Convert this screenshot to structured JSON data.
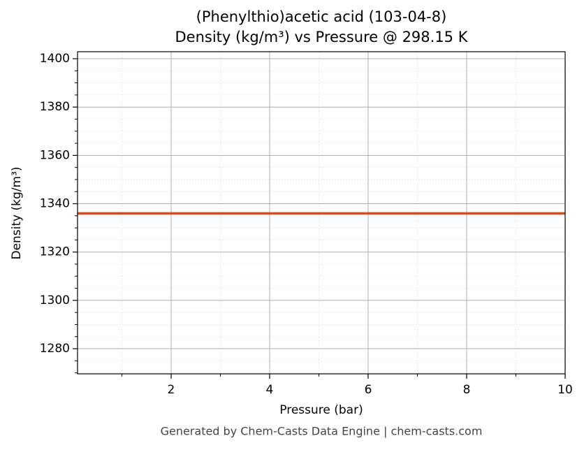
{
  "chart_data": {
    "type": "line",
    "title": "(Phenylthio)acetic acid (103-04-8)",
    "subtitle": "Density (kg/m³) vs Pressure @ 298.15 K",
    "x_label": "Pressure (bar)",
    "y_label": "Density (kg/m³)",
    "annotation": "Generated by Chem-Casts Data Engine | chem-casts.com",
    "x": [
      0.1,
      10
    ],
    "values": [
      1336,
      1336
    ],
    "color": "#cc5028",
    "xlim": [
      0.1,
      10
    ],
    "ylim": [
      1269.6,
      1402.9
    ],
    "xticks": [
      2,
      4,
      6,
      8,
      10
    ],
    "yticks": [
      1280,
      1300,
      1320,
      1340,
      1360,
      1380,
      1400
    ],
    "x_minor_ticks": [
      1,
      3,
      5,
      7,
      9
    ],
    "y_minor_ticks": [
      1270,
      1275,
      1285,
      1290,
      1295,
      1305,
      1310,
      1315,
      1325,
      1330,
      1335,
      1345,
      1350,
      1355,
      1365,
      1370,
      1375,
      1385,
      1390,
      1395
    ],
    "grid": true
  }
}
